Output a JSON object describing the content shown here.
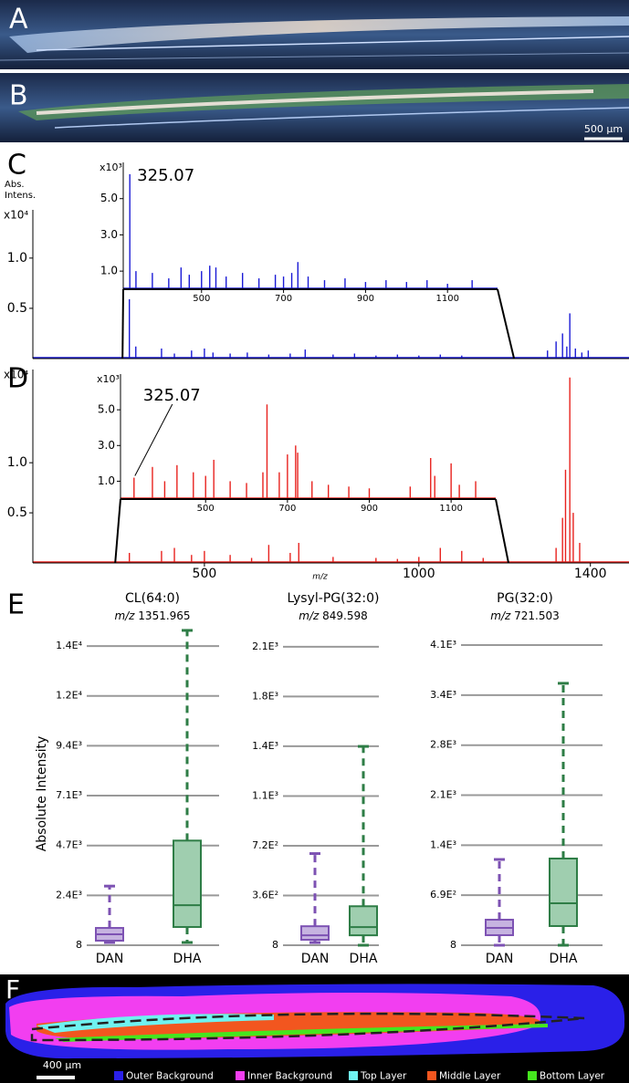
{
  "panels": [
    "A",
    "B",
    "C",
    "D",
    "E",
    "F"
  ],
  "scale_bars": [
    "500 µm",
    "400 µm"
  ],
  "axis_label": "Absolute Intensity",
  "legend": {
    "items": [
      {
        "name": "Outer Background",
        "color": "#2a20e8"
      },
      {
        "name": "Inner Background",
        "color": "#f23ef0"
      },
      {
        "name": "Top Layer",
        "color": "#6ff2f0"
      },
      {
        "name": "Middle Layer",
        "color": "#f2561f"
      },
      {
        "name": "Bottom Layer",
        "color": "#45e61e"
      }
    ]
  },
  "chart_data": [
    {
      "type": "spectrum",
      "ylabel_lines": [
        "Abs.",
        "Intens."
      ],
      "y_multiplier": "x10⁴",
      "color": "#1a1ad6",
      "xlim": [
        100,
        1490
      ],
      "ylim": [
        0,
        1.48
      ],
      "yticks": [
        0.5,
        {
          "value": 1,
          "label": "1.0"
        }
      ],
      "x": [
        325,
        340,
        400,
        430,
        470,
        500,
        520,
        560,
        600,
        650,
        700,
        735,
        800,
        850,
        900,
        950,
        1000,
        1050,
        1100,
        1300,
        1320,
        1335,
        1345,
        1352,
        1365,
        1380,
        1395
      ],
      "values": [
        0.59,
        0.12,
        0.1,
        0.05,
        0.08,
        0.1,
        0.06,
        0.05,
        0.06,
        0.04,
        0.05,
        0.09,
        0.04,
        0.05,
        0.03,
        0.04,
        0.03,
        0.04,
        0.03,
        0.08,
        0.17,
        0.25,
        0.12,
        0.45,
        0.1,
        0.06,
        0.08
      ],
      "inset": {
        "y_multiplier": "x10³",
        "annotation": "325.07",
        "xlim": [
          309,
          1222
        ],
        "ylim": [
          0,
          7
        ],
        "xticks": [
          500,
          700,
          900,
          1100
        ],
        "yticks": [
          {
            "value": 1,
            "label": "1.0"
          },
          {
            "value": 3,
            "label": "3.0"
          },
          {
            "value": 5,
            "label": "5.0"
          }
        ],
        "x": [
          325,
          340,
          380,
          420,
          450,
          470,
          500,
          520,
          535,
          560,
          600,
          640,
          680,
          700,
          720,
          735,
          760,
          800,
          850,
          900,
          950,
          1000,
          1050,
          1100,
          1160
        ],
        "values": [
          6.35,
          1.0,
          0.9,
          0.6,
          1.2,
          0.8,
          1.0,
          1.3,
          1.2,
          0.7,
          0.9,
          0.6,
          0.8,
          0.7,
          0.9,
          1.5,
          0.7,
          0.5,
          0.6,
          0.4,
          0.5,
          0.4,
          0.5,
          0.3,
          0.5
        ]
      }
    },
    {
      "type": "spectrum",
      "y_multiplier": "x10⁴",
      "color": "#e8221e",
      "xlabel": "m/z",
      "xlim": [
        100,
        1490
      ],
      "ylim": [
        0,
        1.93
      ],
      "yticks": [
        0.5,
        {
          "value": 1,
          "label": "1.0"
        }
      ],
      "xticks": [
        500,
        1000,
        1400
      ],
      "x": [
        325,
        400,
        430,
        470,
        500,
        560,
        610,
        650,
        700,
        720,
        800,
        900,
        950,
        1000,
        1050,
        1100,
        1150,
        1320,
        1335,
        1342,
        1352,
        1360,
        1375
      ],
      "values": [
        0.1,
        0.12,
        0.15,
        0.08,
        0.12,
        0.08,
        0.05,
        0.18,
        0.1,
        0.2,
        0.06,
        0.05,
        0.04,
        0.06,
        0.15,
        0.12,
        0.05,
        0.15,
        0.45,
        0.93,
        1.85,
        0.5,
        0.2
      ],
      "inset": {
        "y_multiplier": "x10³",
        "annotation": "325.07",
        "xlim": [
          292,
          1209
        ],
        "ylim": [
          0,
          7
        ],
        "xticks": [
          500,
          700,
          900,
          1100
        ],
        "yticks": [
          {
            "value": 1,
            "label": "1.0"
          },
          {
            "value": 3,
            "label": "3.0"
          },
          {
            "value": 5,
            "label": "5.0"
          }
        ],
        "x": [
          325,
          370,
          400,
          430,
          470,
          500,
          520,
          560,
          600,
          640,
          650,
          680,
          700,
          720,
          725,
          760,
          800,
          850,
          900,
          1000,
          1050,
          1060,
          1100,
          1120,
          1160
        ],
        "values": [
          1.2,
          1.8,
          1.0,
          1.9,
          1.5,
          1.3,
          2.2,
          1.0,
          0.9,
          1.5,
          5.3,
          1.5,
          2.5,
          3.0,
          2.6,
          1.0,
          0.8,
          0.7,
          0.6,
          0.7,
          2.3,
          1.3,
          2.0,
          0.8,
          1.0
        ]
      }
    },
    {
      "type": "box",
      "title": "CL(64:0)",
      "subtitle_unit": "m/z",
      "subtitle": "1351.965",
      "categories": [
        "DAN",
        "DHA"
      ],
      "colors": [
        "#7d52b3",
        "#2e7d46"
      ],
      "fill_colors": [
        "#c6b3e0",
        "#9fceaf"
      ],
      "ylim": [
        8,
        15100
      ],
      "yticks": [
        8,
        {
          "value": 2358,
          "label": "2.4E³"
        },
        {
          "value": 4708,
          "label": "4.7E³"
        },
        {
          "value": 7058,
          "label": "7.1E³"
        },
        {
          "value": 9408,
          "label": "9.4E³"
        },
        {
          "value": 11758,
          "label": "1.2E⁴"
        },
        {
          "value": 14108,
          "label": "1.4E⁴"
        }
      ],
      "min": [
        137,
        137
      ],
      "q1": [
        222,
        866
      ],
      "median": [
        523,
        1895
      ],
      "q3": [
        823,
        4939
      ],
      "max": [
        2795,
        14845
      ]
    },
    {
      "type": "box",
      "title": "Lysyl-PG(32:0)",
      "subtitle_unit": "m/z",
      "subtitle": "849.598",
      "categories": [
        "DAN",
        "DHA"
      ],
      "colors": [
        "#7d52b3",
        "#2e7d46"
      ],
      "fill_colors": [
        "#c6b3e0",
        "#9fceaf"
      ],
      "ylim": [
        8,
        2300
      ],
      "yticks": [
        8,
        {
          "value": 364,
          "label": "3.6E²"
        },
        {
          "value": 720,
          "label": "7.2E²"
        },
        {
          "value": 1076,
          "label": "1.1E³"
        },
        {
          "value": 1432,
          "label": "1.4E³"
        },
        {
          "value": 1788,
          "label": "1.8E³"
        },
        {
          "value": 2144,
          "label": "2.1E³"
        }
      ],
      "min": [
        27,
        8
      ],
      "q1": [
        47,
        79
      ],
      "median": [
        79,
        138
      ],
      "q3": [
        144,
        287
      ],
      "max": [
        664,
        1431
      ]
    },
    {
      "type": "box",
      "title": "PG(32:0)",
      "subtitle_unit": "m/z",
      "subtitle": "721.503",
      "categories": [
        "DAN",
        "DHA"
      ],
      "colors": [
        "#7d52b3",
        "#2e7d46"
      ],
      "fill_colors": [
        "#c6b3e0",
        "#9fceaf"
      ],
      "ylim": [
        8,
        4400
      ],
      "yticks": [
        8,
        {
          "value": 694,
          "label": "6.9E²"
        },
        {
          "value": 1380,
          "label": "1.4E³"
        },
        {
          "value": 2066,
          "label": "2.1E³"
        },
        {
          "value": 2752,
          "label": "2.8E³"
        },
        {
          "value": 3438,
          "label": "3.4E³"
        },
        {
          "value": 4124,
          "label": "4.1E³"
        }
      ],
      "min": [
        8,
        8
      ],
      "q1": [
        146,
        271
      ],
      "median": [
        246,
        584
      ],
      "q3": [
        358,
        1197
      ],
      "max": [
        1184,
        3600
      ]
    }
  ]
}
